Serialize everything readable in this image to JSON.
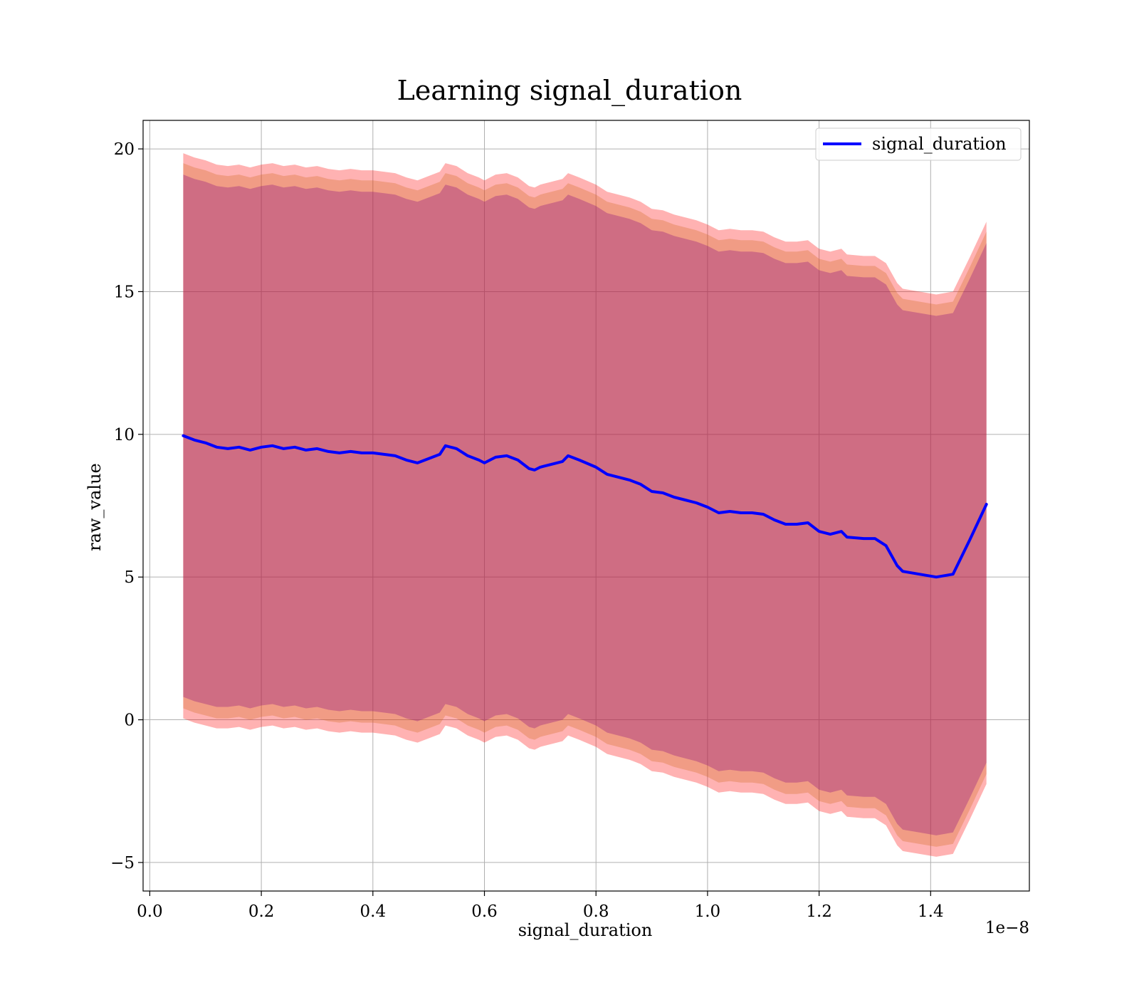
{
  "chart_data": {
    "type": "area",
    "title": "Learning signal_duration",
    "xlabel": "signal_duration",
    "ylabel": "raw_value",
    "x_offset_label": "1e−8",
    "xlim": [
      -0.012,
      1.577
    ],
    "ylim": [
      -6.0,
      21.0
    ],
    "xticks": [
      0.0,
      0.2,
      0.4,
      0.6,
      0.8,
      1.0,
      1.2,
      1.4
    ],
    "xtick_labels": [
      "0.0",
      "0.2",
      "0.4",
      "0.6",
      "0.8",
      "1.0",
      "1.2",
      "1.4"
    ],
    "yticks": [
      -5,
      0,
      5,
      10,
      15,
      20
    ],
    "ytick_labels": [
      "−5",
      "0",
      "5",
      "10",
      "15",
      "20"
    ],
    "grid": true,
    "legend": {
      "position": "top-right",
      "entries": [
        "signal_duration"
      ]
    },
    "colors": {
      "mean_line": "#0000ff",
      "band_outer": "#ff0000",
      "band_middle": "#d2691e",
      "band_inner": "#800080"
    },
    "x": [
      0.06,
      0.08,
      0.1,
      0.12,
      0.14,
      0.16,
      0.18,
      0.2,
      0.22,
      0.24,
      0.26,
      0.28,
      0.3,
      0.32,
      0.34,
      0.36,
      0.38,
      0.4,
      0.42,
      0.44,
      0.46,
      0.48,
      0.5,
      0.52,
      0.53,
      0.55,
      0.57,
      0.59,
      0.6,
      0.62,
      0.64,
      0.66,
      0.68,
      0.69,
      0.7,
      0.72,
      0.74,
      0.75,
      0.77,
      0.8,
      0.82,
      0.84,
      0.86,
      0.88,
      0.9,
      0.92,
      0.94,
      0.96,
      0.98,
      1.0,
      1.02,
      1.04,
      1.06,
      1.08,
      1.1,
      1.12,
      1.14,
      1.16,
      1.18,
      1.2,
      1.22,
      1.24,
      1.25,
      1.28,
      1.3,
      1.32,
      1.34,
      1.35,
      1.38,
      1.41,
      1.44,
      1.47,
      1.5
    ],
    "series": [
      {
        "name": "signal_duration",
        "values": [
          9.95,
          9.8,
          9.7,
          9.55,
          9.5,
          9.55,
          9.45,
          9.55,
          9.6,
          9.5,
          9.55,
          9.45,
          9.5,
          9.4,
          9.35,
          9.4,
          9.35,
          9.35,
          9.3,
          9.25,
          9.1,
          9.0,
          9.15,
          9.3,
          9.6,
          9.5,
          9.25,
          9.1,
          9.0,
          9.2,
          9.25,
          9.1,
          8.8,
          8.75,
          8.85,
          8.95,
          9.05,
          9.25,
          9.1,
          8.85,
          8.6,
          8.5,
          8.4,
          8.25,
          8.0,
          7.95,
          7.8,
          7.7,
          7.6,
          7.45,
          7.25,
          7.3,
          7.25,
          7.25,
          7.2,
          7.0,
          6.85,
          6.85,
          6.9,
          6.6,
          6.5,
          6.6,
          6.4,
          6.35,
          6.35,
          6.1,
          5.4,
          5.2,
          5.1,
          5.0,
          5.1,
          6.3,
          7.55
        ]
      }
    ],
    "bands": [
      {
        "role": "outer",
        "lower": [
          0.05,
          -0.1,
          -0.2,
          -0.3,
          -0.3,
          -0.25,
          -0.35,
          -0.25,
          -0.2,
          -0.3,
          -0.25,
          -0.35,
          -0.3,
          -0.4,
          -0.45,
          -0.4,
          -0.45,
          -0.45,
          -0.5,
          -0.55,
          -0.7,
          -0.8,
          -0.65,
          -0.5,
          -0.2,
          -0.3,
          -0.55,
          -0.7,
          -0.8,
          -0.6,
          -0.55,
          -0.7,
          -1.0,
          -1.05,
          -0.95,
          -0.85,
          -0.75,
          -0.55,
          -0.7,
          -0.95,
          -1.2,
          -1.3,
          -1.4,
          -1.55,
          -1.8,
          -1.85,
          -2.0,
          -2.1,
          -2.2,
          -2.35,
          -2.55,
          -2.5,
          -2.55,
          -2.55,
          -2.6,
          -2.8,
          -2.95,
          -2.95,
          -2.9,
          -3.2,
          -3.3,
          -3.2,
          -3.4,
          -3.45,
          -3.45,
          -3.7,
          -4.4,
          -4.6,
          -4.7,
          -4.8,
          -4.7,
          -3.5,
          -2.25
        ],
        "upper": [
          19.85,
          19.7,
          19.6,
          19.45,
          19.4,
          19.45,
          19.35,
          19.45,
          19.5,
          19.4,
          19.45,
          19.35,
          19.4,
          19.3,
          19.25,
          19.3,
          19.25,
          19.25,
          19.2,
          19.15,
          19.0,
          18.9,
          19.05,
          19.2,
          19.5,
          19.4,
          19.15,
          19.0,
          18.9,
          19.1,
          19.15,
          19.0,
          18.7,
          18.65,
          18.75,
          18.85,
          18.95,
          19.15,
          19.0,
          18.75,
          18.5,
          18.4,
          18.3,
          18.15,
          17.9,
          17.85,
          17.7,
          17.6,
          17.5,
          17.35,
          17.15,
          17.2,
          17.15,
          17.15,
          17.1,
          16.9,
          16.75,
          16.75,
          16.8,
          16.5,
          16.4,
          16.5,
          16.3,
          16.25,
          16.25,
          16.0,
          15.3,
          15.1,
          15.0,
          14.9,
          15.0,
          16.2,
          17.45
        ]
      },
      {
        "role": "middle",
        "lower": [
          0.4,
          0.25,
          0.15,
          0.05,
          0.05,
          0.1,
          0.0,
          0.1,
          0.15,
          0.05,
          0.1,
          0.0,
          0.05,
          -0.05,
          -0.1,
          -0.05,
          -0.1,
          -0.1,
          -0.15,
          -0.2,
          -0.35,
          -0.45,
          -0.3,
          -0.15,
          0.15,
          0.05,
          -0.2,
          -0.35,
          -0.45,
          -0.25,
          -0.2,
          -0.35,
          -0.65,
          -0.7,
          -0.6,
          -0.5,
          -0.4,
          -0.2,
          -0.35,
          -0.6,
          -0.85,
          -0.95,
          -1.05,
          -1.2,
          -1.45,
          -1.5,
          -1.65,
          -1.75,
          -1.85,
          -2.0,
          -2.2,
          -2.15,
          -2.2,
          -2.2,
          -2.25,
          -2.45,
          -2.6,
          -2.6,
          -2.55,
          -2.85,
          -2.95,
          -2.85,
          -3.05,
          -3.1,
          -3.1,
          -3.35,
          -4.05,
          -4.25,
          -4.35,
          -4.45,
          -4.35,
          -3.15,
          -1.9
        ],
        "upper": [
          19.5,
          19.35,
          19.25,
          19.1,
          19.05,
          19.1,
          19.0,
          19.1,
          19.15,
          19.05,
          19.1,
          19.0,
          19.05,
          18.95,
          18.9,
          18.95,
          18.9,
          18.9,
          18.85,
          18.8,
          18.65,
          18.55,
          18.7,
          18.85,
          19.15,
          19.05,
          18.8,
          18.65,
          18.55,
          18.75,
          18.8,
          18.65,
          18.35,
          18.3,
          18.4,
          18.5,
          18.6,
          18.8,
          18.65,
          18.4,
          18.15,
          18.05,
          17.95,
          17.8,
          17.55,
          17.5,
          17.35,
          17.25,
          17.15,
          17.0,
          16.8,
          16.85,
          16.8,
          16.8,
          16.75,
          16.55,
          16.4,
          16.4,
          16.45,
          16.15,
          16.05,
          16.15,
          15.95,
          15.9,
          15.9,
          15.65,
          14.95,
          14.75,
          14.65,
          14.55,
          14.65,
          15.85,
          17.1
        ]
      },
      {
        "role": "inner",
        "lower": [
          0.8,
          0.65,
          0.55,
          0.45,
          0.45,
          0.5,
          0.4,
          0.5,
          0.55,
          0.45,
          0.5,
          0.4,
          0.45,
          0.35,
          0.3,
          0.35,
          0.3,
          0.3,
          0.25,
          0.2,
          0.05,
          -0.05,
          0.1,
          0.25,
          0.55,
          0.45,
          0.2,
          0.05,
          -0.05,
          0.15,
          0.2,
          0.05,
          -0.25,
          -0.3,
          -0.2,
          -0.1,
          0.0,
          0.2,
          0.05,
          -0.2,
          -0.45,
          -0.55,
          -0.65,
          -0.8,
          -1.05,
          -1.1,
          -1.25,
          -1.35,
          -1.45,
          -1.6,
          -1.8,
          -1.75,
          -1.8,
          -1.8,
          -1.85,
          -2.05,
          -2.2,
          -2.2,
          -2.15,
          -2.45,
          -2.55,
          -2.45,
          -2.65,
          -2.7,
          -2.7,
          -2.95,
          -3.65,
          -3.85,
          -3.95,
          -4.05,
          -3.95,
          -2.75,
          -1.5
        ],
        "upper": [
          19.1,
          18.95,
          18.85,
          18.7,
          18.65,
          18.7,
          18.6,
          18.7,
          18.75,
          18.65,
          18.7,
          18.6,
          18.65,
          18.55,
          18.5,
          18.55,
          18.5,
          18.5,
          18.45,
          18.4,
          18.25,
          18.15,
          18.3,
          18.45,
          18.75,
          18.65,
          18.4,
          18.25,
          18.15,
          18.35,
          18.4,
          18.25,
          17.95,
          17.9,
          18.0,
          18.1,
          18.2,
          18.4,
          18.25,
          18.0,
          17.75,
          17.65,
          17.55,
          17.4,
          17.15,
          17.1,
          16.95,
          16.85,
          16.75,
          16.6,
          16.4,
          16.45,
          16.4,
          16.4,
          16.35,
          16.15,
          16.0,
          16.0,
          16.05,
          15.75,
          15.65,
          15.75,
          15.55,
          15.5,
          15.5,
          15.25,
          14.55,
          14.35,
          14.25,
          14.15,
          14.25,
          15.45,
          16.7
        ]
      }
    ]
  }
}
